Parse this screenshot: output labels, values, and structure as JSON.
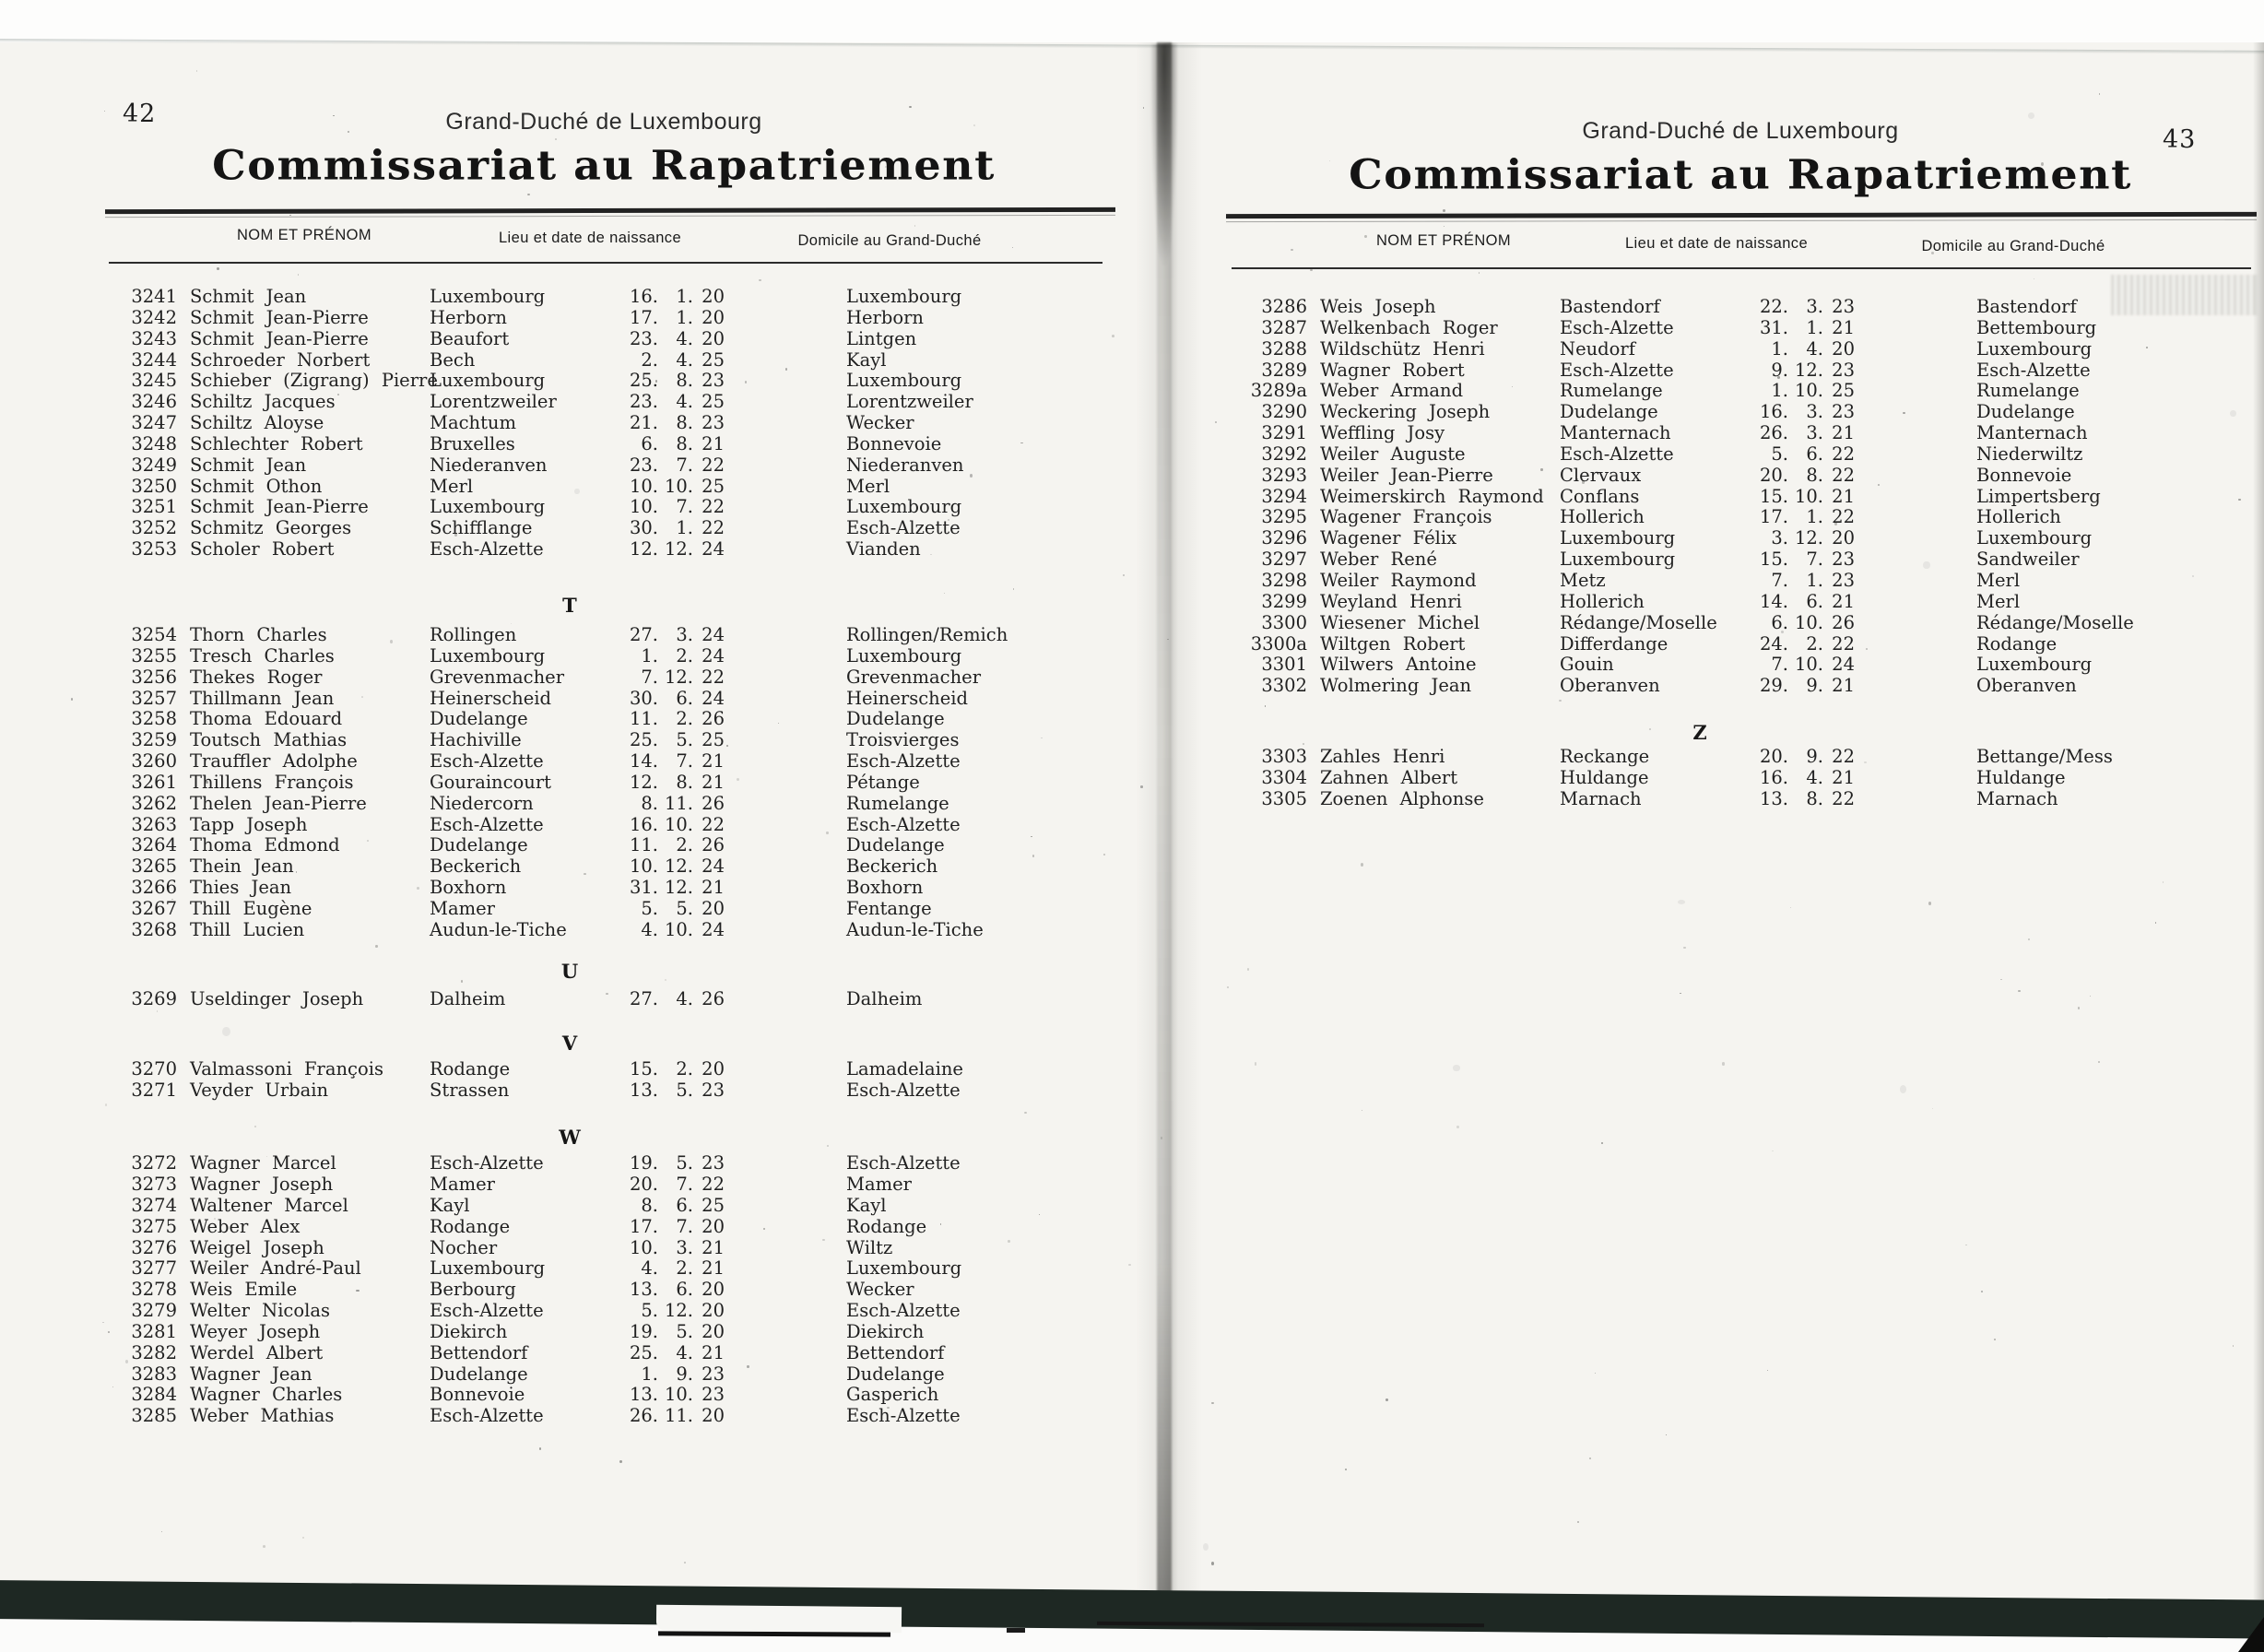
{
  "colors": {
    "paper": "#f5f4f0",
    "ink": "#212121",
    "scan_bar": "#1e2823"
  },
  "left_page": {
    "page_number": "42",
    "region_header": "Grand-Duché de Luxembourg",
    "title": "Commissariat au Rapatriement",
    "columns": [
      "NOM ET PRÉNOM",
      "Lieu et date de naissance",
      "Domicile au Grand-Duché"
    ],
    "sections": [
      {
        "letter": "",
        "rows": [
          [
            "3241",
            "Schmit Jean",
            "Luxembourg",
            "16",
            "1",
            "20",
            "Luxembourg"
          ],
          [
            "3242",
            "Schmit Jean-Pierre",
            "Herborn",
            "17",
            "1",
            "20",
            "Herborn"
          ],
          [
            "3243",
            "Schmit Jean-Pierre",
            "Beaufort",
            "23",
            "4",
            "20",
            "Lintgen"
          ],
          [
            "3244",
            "Schroeder Norbert",
            "Bech",
            "2",
            "4",
            "25",
            "Kayl"
          ],
          [
            "3245",
            "Schieber (Zigrang) Pierre",
            "Luxembourg",
            "25",
            "8",
            "23",
            "Luxembourg"
          ],
          [
            "3246",
            "Schiltz Jacques",
            "Lorentzweiler",
            "23",
            "4",
            "25",
            "Lorentzweiler"
          ],
          [
            "3247",
            "Schiltz Aloyse",
            "Machtum",
            "21",
            "8",
            "23",
            "Wecker"
          ],
          [
            "3248",
            "Schlechter Robert",
            "Bruxelles",
            "6",
            "8",
            "21",
            "Bonnevoie"
          ],
          [
            "3249",
            "Schmit Jean",
            "Niederanven",
            "23",
            "7",
            "22",
            "Niederanven"
          ],
          [
            "3250",
            "Schmit Othon",
            "Merl",
            "10",
            "10",
            "25",
            "Merl"
          ],
          [
            "3251",
            "Schmit Jean-Pierre",
            "Luxembourg",
            "10",
            "7",
            "22",
            "Luxembourg"
          ],
          [
            "3252",
            "Schmitz Georges",
            "Schifflange",
            "30",
            "1",
            "22",
            "Esch-Alzette"
          ],
          [
            "3253",
            "Scholer Robert",
            "Esch-Alzette",
            "12",
            "12",
            "24",
            "Vianden"
          ]
        ]
      },
      {
        "letter": "T",
        "rows": [
          [
            "3254",
            "Thorn Charles",
            "Rollingen",
            "27",
            "3",
            "24",
            "Rollingen/Remich"
          ],
          [
            "3255",
            "Tresch Charles",
            "Luxembourg",
            "1",
            "2",
            "24",
            "Luxembourg"
          ],
          [
            "3256",
            "Thekes Roger",
            "Grevenmacher",
            "7",
            "12",
            "22",
            "Grevenmacher"
          ],
          [
            "3257",
            "Thillmann Jean",
            "Heinerscheid",
            "30",
            "6",
            "24",
            "Heinerscheid"
          ],
          [
            "3258",
            "Thoma Edouard",
            "Dudelange",
            "11",
            "2",
            "26",
            "Dudelange"
          ],
          [
            "3259",
            "Toutsch Mathias",
            "Hachiville",
            "25",
            "5",
            "25",
            "Troisvierges"
          ],
          [
            "3260",
            "Trauffler Adolphe",
            "Esch-Alzette",
            "14",
            "7",
            "21",
            "Esch-Alzette"
          ],
          [
            "3261",
            "Thillens François",
            "Gouraincourt",
            "12",
            "8",
            "21",
            "Pétange"
          ],
          [
            "3262",
            "Thelen Jean-Pierre",
            "Niedercorn",
            "8",
            "11",
            "26",
            "Rumelange"
          ],
          [
            "3263",
            "Tapp Joseph",
            "Esch-Alzette",
            "16",
            "10",
            "22",
            "Esch-Alzette"
          ],
          [
            "3264",
            "Thoma Edmond",
            "Dudelange",
            "11",
            "2",
            "26",
            "Dudelange"
          ],
          [
            "3265",
            "Thein Jean",
            "Beckerich",
            "10",
            "12",
            "24",
            "Beckerich"
          ],
          [
            "3266",
            "Thies Jean",
            "Boxhorn",
            "31",
            "12",
            "21",
            "Boxhorn"
          ],
          [
            "3267",
            "Thill Eugène",
            "Mamer",
            "5",
            "5",
            "20",
            "Fentange"
          ],
          [
            "3268",
            "Thill Lucien",
            "Audun-le-Tiche",
            "4",
            "10",
            "24",
            "Audun-le-Tiche"
          ]
        ]
      },
      {
        "letter": "U",
        "rows": [
          [
            "3269",
            "Useldinger Joseph",
            "Dalheim",
            "27",
            "4",
            "26",
            "Dalheim"
          ]
        ]
      },
      {
        "letter": "V",
        "rows": [
          [
            "3270",
            "Valmassoni François",
            "Rodange",
            "15",
            "2",
            "20",
            "Lamadelaine"
          ],
          [
            "3271",
            "Veyder Urbain",
            "Strassen",
            "13",
            "5",
            "23",
            "Esch-Alzette"
          ]
        ]
      },
      {
        "letter": "W",
        "rows": [
          [
            "3272",
            "Wagner Marcel",
            "Esch-Alzette",
            "19",
            "5",
            "23",
            "Esch-Alzette"
          ],
          [
            "3273",
            "Wagner Joseph",
            "Mamer",
            "20",
            "7",
            "22",
            "Mamer"
          ],
          [
            "3274",
            "Waltener Marcel",
            "Kayl",
            "8",
            "6",
            "25",
            "Kayl"
          ],
          [
            "3275",
            "Weber Alex",
            "Rodange",
            "17",
            "7",
            "20",
            "Rodange"
          ],
          [
            "3276",
            "Weigel Joseph",
            "Nocher",
            "10",
            "3",
            "21",
            "Wiltz"
          ],
          [
            "3277",
            "Weiler André-Paul",
            "Luxembourg",
            "4",
            "2",
            "21",
            "Luxembourg"
          ],
          [
            "3278",
            "Weis Emile",
            "Berbourg",
            "13",
            "6",
            "20",
            "Wecker"
          ],
          [
            "3279",
            "Welter Nicolas",
            "Esch-Alzette",
            "5",
            "12",
            "20",
            "Esch-Alzette"
          ],
          [
            "3281",
            "Weyer Joseph",
            "Diekirch",
            "19",
            "5",
            "20",
            "Diekirch"
          ],
          [
            "3282",
            "Werdel Albert",
            "Bettendorf",
            "25",
            "4",
            "21",
            "Bettendorf"
          ],
          [
            "3283",
            "Wagner Jean",
            "Dudelange",
            "1",
            "9",
            "23",
            "Dudelange"
          ],
          [
            "3284",
            "Wagner Charles",
            "Bonnevoie",
            "13",
            "10",
            "23",
            "Gasperich"
          ],
          [
            "3285",
            "Weber Mathias",
            "Esch-Alzette",
            "26",
            "11",
            "20",
            "Esch-Alzette"
          ]
        ]
      }
    ]
  },
  "right_page": {
    "page_number": "43",
    "region_header": "Grand-Duché de Luxembourg",
    "title": "Commissariat au Rapatriement",
    "columns": [
      "NOM ET PRÉNOM",
      "Lieu et date de naissance",
      "Domicile au Grand-Duché"
    ],
    "sections": [
      {
        "letter": "",
        "rows": [
          [
            "3286",
            "Weis Joseph",
            "Bastendorf",
            "22",
            "3",
            "23",
            "Bastendorf"
          ],
          [
            "3287",
            "Welkenbach Roger",
            "Esch-Alzette",
            "31",
            "1",
            "21",
            "Bettembourg"
          ],
          [
            "3288",
            "Wildschütz Henri",
            "Neudorf",
            "1",
            "4",
            "20",
            "Luxembourg"
          ],
          [
            "3289",
            "Wagner Robert",
            "Esch-Alzette",
            "9",
            "12",
            "23",
            "Esch-Alzette"
          ],
          [
            "3289a",
            "Weber Armand",
            "Rumelange",
            "1",
            "10",
            "25",
            "Rumelange"
          ],
          [
            "3290",
            "Weckering Joseph",
            "Dudelange",
            "16",
            "3",
            "23",
            "Dudelange"
          ],
          [
            "3291",
            "Weffling Josy",
            "Manternach",
            "26",
            "3",
            "21",
            "Manternach"
          ],
          [
            "3292",
            "Weiler Auguste",
            "Esch-Alzette",
            "5",
            "6",
            "22",
            "Niederwiltz"
          ],
          [
            "3293",
            "Weiler Jean-Pierre",
            "Clervaux",
            "20",
            "8",
            "22",
            "Bonnevoie"
          ],
          [
            "3294",
            "Weimerskirch Raymond",
            "Conflans",
            "15",
            "10",
            "21",
            "Limpertsberg"
          ],
          [
            "3295",
            "Wagener François",
            "Hollerich",
            "17",
            "1",
            "22",
            "Hollerich"
          ],
          [
            "3296",
            "Wagener Félix",
            "Luxembourg",
            "3",
            "12",
            "20",
            "Luxembourg"
          ],
          [
            "3297",
            "Weber René",
            "Luxembourg",
            "15",
            "7",
            "23",
            "Sandweiler"
          ],
          [
            "3298",
            "Weiler Raymond",
            "Metz",
            "7",
            "1",
            "23",
            "Merl"
          ],
          [
            "3299",
            "Weyland Henri",
            "Hollerich",
            "14",
            "6",
            "21",
            "Merl"
          ],
          [
            "3300",
            "Wiesener Michel",
            "Rédange/Moselle",
            "6",
            "10",
            "26",
            "Rédange/Moselle"
          ],
          [
            "3300a",
            "Wiltgen Robert",
            "Differdange",
            "24",
            "2",
            "22",
            "Rodange"
          ],
          [
            "3301",
            "Wilwers Antoine",
            "Gouin",
            "7",
            "10",
            "24",
            "Luxembourg"
          ],
          [
            "3302",
            "Wolmering Jean",
            "Oberanven",
            "29",
            "9",
            "21",
            "Oberanven"
          ]
        ]
      },
      {
        "letter": "Z",
        "rows": [
          [
            "3303",
            "Zahles Henri",
            "Reckange",
            "20",
            "9",
            "22",
            "Bettange/Mess"
          ],
          [
            "3304",
            "Zahnen Albert",
            "Huldange",
            "16",
            "4",
            "21",
            "Huldange"
          ],
          [
            "3305",
            "Zoenen Alphonse",
            "Marnach",
            "13",
            "8",
            "22",
            "Marnach"
          ]
        ]
      }
    ]
  }
}
